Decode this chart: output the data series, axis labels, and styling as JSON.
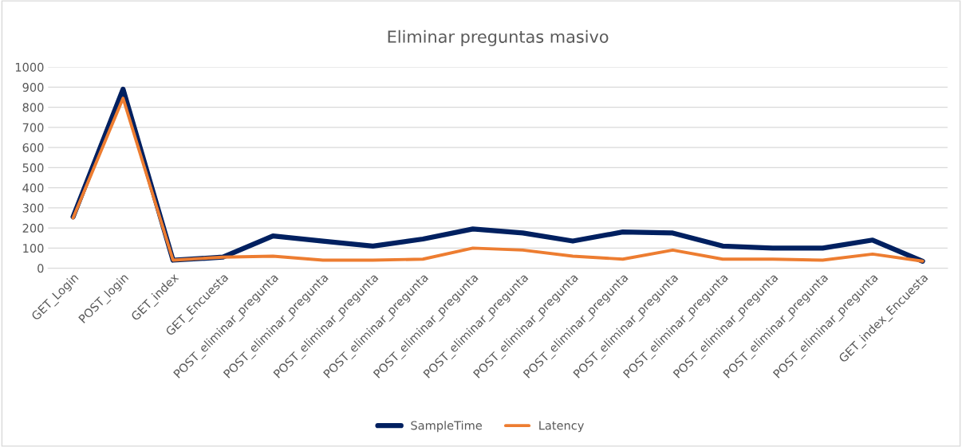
{
  "chart_data": {
    "type": "line",
    "title": "Eliminar preguntas masivo",
    "categories": [
      "GET_Login",
      "POST_login",
      "GET_index",
      "GET_Encuesta",
      "POST_eliminar_pregunta",
      "POST_eliminar_pregunta",
      "POST_eliminar_pregunta",
      "POST_eliminar_pregunta",
      "POST_eliminar_pregunta",
      "POST_eliminar_pregunta",
      "POST_eliminar_pregunta",
      "POST_eliminar_pregunta",
      "POST_eliminar_pregunta",
      "POST_eliminar_pregunta",
      "POST_eliminar_pregunta",
      "POST_eliminar_pregunta",
      "POST_eliminar_pregunta",
      "GET_index_Encuesta"
    ],
    "series": [
      {
        "name": "SampleTime",
        "color": "#002060",
        "values": [
          255,
          890,
          40,
          55,
          160,
          135,
          110,
          145,
          195,
          175,
          135,
          180,
          175,
          110,
          100,
          100,
          140,
          35
        ]
      },
      {
        "name": "Latency",
        "color": "#ed7d31",
        "values": [
          250,
          845,
          40,
          55,
          60,
          40,
          40,
          45,
          100,
          90,
          60,
          45,
          90,
          45,
          45,
          40,
          70,
          35
        ]
      }
    ],
    "ylim": [
      0,
      1000
    ],
    "yticks": [
      0,
      100,
      200,
      300,
      400,
      500,
      600,
      700,
      800,
      900,
      1000
    ],
    "grid": "y",
    "legend": "bottom",
    "marker": "none",
    "line_style": "solid"
  }
}
